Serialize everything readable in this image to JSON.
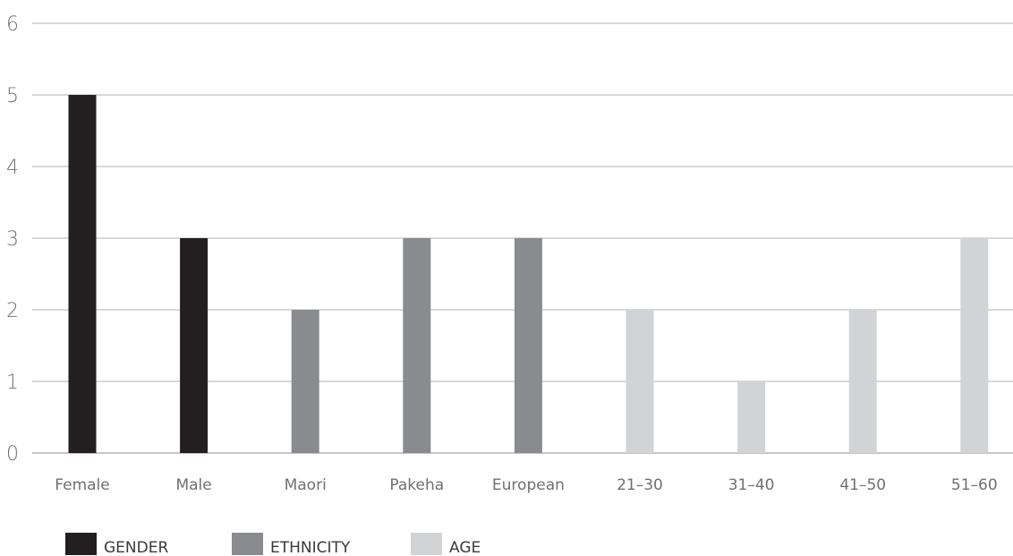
{
  "chart_data": {
    "type": "bar",
    "categories": [
      "Female",
      "Male",
      "Maori",
      "Pakeha",
      "European",
      "21–30",
      "31–40",
      "41–50",
      "51–60"
    ],
    "values": [
      5,
      3,
      2,
      3,
      3,
      2,
      1,
      2,
      3
    ],
    "groups": [
      "GENDER",
      "GENDER",
      "ETHNICITY",
      "ETHNICITY",
      "ETHNICITY",
      "AGE",
      "AGE",
      "AGE",
      "AGE"
    ],
    "legend": [
      {
        "name": "GENDER",
        "color": "#231f20"
      },
      {
        "name": "ETHNICITY",
        "color": "#8a8b8e"
      },
      {
        "name": "AGE",
        "color": "#d2d3d5"
      }
    ],
    "title": "",
    "xlabel": "",
    "ylabel": "",
    "ylim": [
      0,
      6
    ],
    "yticks": [
      "0",
      "1",
      "2",
      "3",
      "4",
      "5",
      "6"
    ],
    "grid": true,
    "legend_position": "bottom-left"
  }
}
